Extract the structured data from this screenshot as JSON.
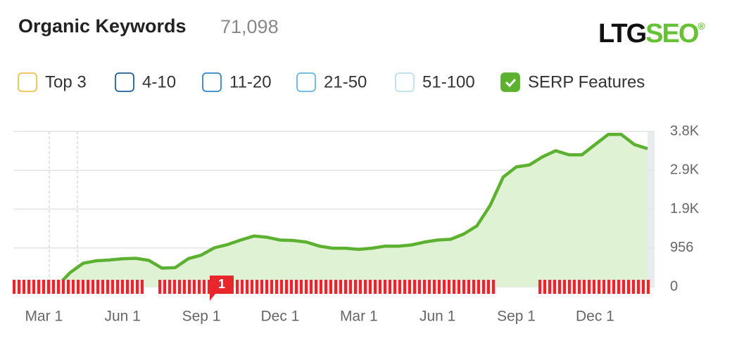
{
  "chart_data": {
    "type": "area",
    "title": "Organic Keywords",
    "subtitle": "71,098",
    "logo": {
      "text": "LTG",
      "accent": "SEO",
      "mark": "®"
    },
    "legend": [
      {
        "label": "Top 3",
        "color": "#f2c14e",
        "checked": false
      },
      {
        "label": "4-10",
        "color": "#1f5f98",
        "checked": false
      },
      {
        "label": "11-20",
        "color": "#2f86cc",
        "checked": false
      },
      {
        "label": "21-50",
        "color": "#63b7e2",
        "checked": false
      },
      {
        "label": "51-100",
        "color": "#bcdff1",
        "checked": false
      },
      {
        "label": "SERP Features",
        "color": "#5cb130",
        "checked": true
      }
    ],
    "annotation": "1",
    "color": "#5cb130",
    "fill": "#dff2d4",
    "categories": [
      null,
      null,
      "Mar 1",
      null,
      null,
      null,
      null,
      null,
      "Jun 1",
      null,
      null,
      null,
      null,
      null,
      "Sep 1",
      null,
      null,
      null,
      null,
      null,
      "Dec 1",
      null,
      null,
      null,
      null,
      null,
      "Mar 1",
      null,
      null,
      null,
      null,
      null,
      "Jun 1",
      null,
      null,
      null,
      null,
      null,
      "Sep 1",
      null,
      null,
      null,
      null,
      null,
      "Dec 1",
      null,
      null,
      null,
      null
    ],
    "values": [
      0,
      0,
      0,
      10,
      350,
      580,
      640,
      660,
      690,
      700,
      650,
      460,
      470,
      690,
      780,
      960,
      1040,
      1150,
      1250,
      1220,
      1150,
      1140,
      1100,
      1000,
      950,
      950,
      920,
      950,
      1000,
      1000,
      1030,
      1100,
      1150,
      1170,
      1300,
      1500,
      2000,
      2700,
      2950,
      3000,
      3200,
      3350,
      3250,
      3250,
      3500,
      3750,
      3750,
      3500,
      3400
    ],
    "ylim": [
      0,
      3824
    ],
    "yticks": [
      0,
      956,
      {
        "value": 1912,
        "label": "1.9K"
      },
      {
        "value": 2868,
        "label": "2.9K"
      },
      {
        "value": 3824,
        "label": "3.8K"
      }
    ],
    "grid": true
  }
}
